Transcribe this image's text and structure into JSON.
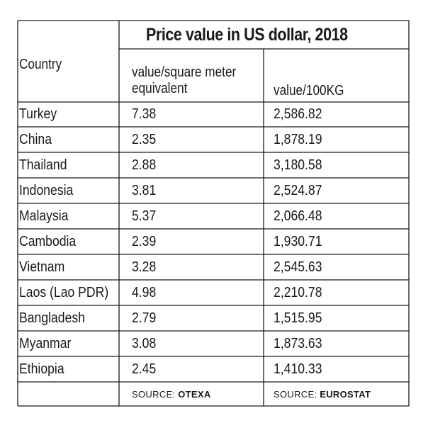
{
  "table": {
    "title": "Price value in US dollar, 2018",
    "headers": {
      "country": "Country",
      "col1_line1": "value/square meter",
      "col1_line2": "equivalent",
      "col2": "value/100KG"
    },
    "rows": [
      {
        "country": "Turkey",
        "value_sqm": "7.38",
        "value_100kg": "2,586.82"
      },
      {
        "country": "China",
        "value_sqm": "2.35",
        "value_100kg": "1,878.19"
      },
      {
        "country": "Thailand",
        "value_sqm": "2.88",
        "value_100kg": "3,180.58"
      },
      {
        "country": "Indonesia",
        "value_sqm": "3.81",
        "value_100kg": "2,524.87"
      },
      {
        "country": "Malaysia",
        "value_sqm": "5.37",
        "value_100kg": "2,066.48"
      },
      {
        "country": "Cambodia",
        "value_sqm": "2.39",
        "value_100kg": "1,930.71"
      },
      {
        "country": "Vietnam",
        "value_sqm": "3.28",
        "value_100kg": "2,545.63"
      },
      {
        "country": "Laos (Lao PDR)",
        "value_sqm": "4.98",
        "value_100kg": "2,210.78"
      },
      {
        "country": "Bangladesh",
        "value_sqm": "2.79",
        "value_100kg": "1,515.95"
      },
      {
        "country": "Myanmar",
        "value_sqm": "3.08",
        "value_100kg": "1,873.63"
      },
      {
        "country": "Ethiopia",
        "value_sqm": "2.45",
        "value_100kg": "1,410.33"
      }
    ],
    "sources": {
      "col1_prefix": "SOURCE:",
      "col1_name": "OTEXA",
      "col2_prefix": "SOURCE:",
      "col2_name": "EUROSTAT"
    }
  }
}
